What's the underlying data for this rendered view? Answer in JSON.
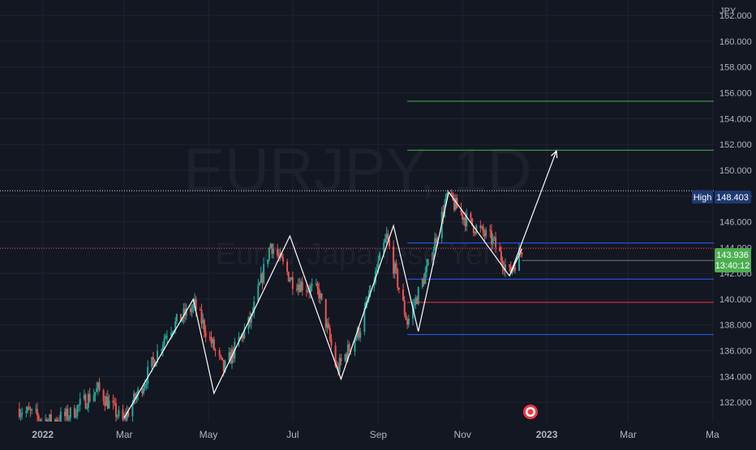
{
  "chart_data": {
    "type": "candlestick",
    "symbol": "EURJPY, 1D",
    "description": "Euro / Japanese Yen",
    "currency": "JPY",
    "y_range": [
      130.5,
      163.2
    ],
    "y_ticks": [
      "162.000",
      "160.000",
      "158.000",
      "156.000",
      "154.000",
      "152.000",
      "150.000",
      "148.000",
      "146.000",
      "144.000",
      "142.000",
      "140.000",
      "138.000",
      "136.000",
      "134.000",
      "132.000"
    ],
    "y_tick_values": [
      162,
      160,
      158,
      156,
      154,
      152,
      150,
      148,
      146,
      144,
      142,
      140,
      138,
      136,
      134,
      132
    ],
    "x_ticks": [
      {
        "label": "2022",
        "date": "2022-01-01",
        "bold": true
      },
      {
        "label": "Mar",
        "date": "2022-03-01",
        "bold": false
      },
      {
        "label": "May",
        "date": "2022-05-01",
        "bold": false
      },
      {
        "label": "Jul",
        "date": "2022-07-01",
        "bold": false
      },
      {
        "label": "Sep",
        "date": "2022-09-01",
        "bold": false
      },
      {
        "label": "Nov",
        "date": "2022-11-01",
        "bold": false
      },
      {
        "label": "2023",
        "date": "2023-01-01",
        "bold": true
      },
      {
        "label": "Mar",
        "date": "2023-03-01",
        "bold": false
      },
      {
        "label": "Ma",
        "date": "2023-05-01",
        "bold": false
      }
    ],
    "high_label": {
      "text": "High",
      "value": "148.403",
      "price": 148.403
    },
    "last_price": {
      "value": "143.936",
      "price": 143.936,
      "countdown": "13:40:12"
    },
    "key_points": [
      {
        "date": "2021-12-15",
        "price": 131.5
      },
      {
        "date": "2022-01-05",
        "price": 130.5
      },
      {
        "date": "2022-01-20",
        "price": 131.0
      },
      {
        "date": "2022-02-10",
        "price": 133.0
      },
      {
        "date": "2022-02-28",
        "price": 130.5
      },
      {
        "date": "2022-03-15",
        "price": 133.5
      },
      {
        "date": "2022-04-01",
        "price": 137.5
      },
      {
        "date": "2022-04-21",
        "price": 139.5
      },
      {
        "date": "2022-05-12",
        "price": 134.5
      },
      {
        "date": "2022-06-01",
        "price": 138.5
      },
      {
        "date": "2022-06-15",
        "price": 144.3
      },
      {
        "date": "2022-06-30",
        "price": 141.5
      },
      {
        "date": "2022-07-20",
        "price": 140.5
      },
      {
        "date": "2022-08-02",
        "price": 134.5
      },
      {
        "date": "2022-08-18",
        "price": 137.5
      },
      {
        "date": "2022-09-07",
        "price": 144.8
      },
      {
        "date": "2022-09-22",
        "price": 138.2
      },
      {
        "date": "2022-10-07",
        "price": 142.5
      },
      {
        "date": "2022-10-21",
        "price": 148.0
      },
      {
        "date": "2022-11-05",
        "price": 146.0
      },
      {
        "date": "2022-11-23",
        "price": 144.5
      },
      {
        "date": "2022-12-05",
        "price": 142.0
      },
      {
        "date": "2022-12-14",
        "price": 143.9
      }
    ],
    "horizontal_lines": [
      {
        "price": 155.35,
        "start": "2022-09-22",
        "color": "#4caf50"
      },
      {
        "price": 151.55,
        "start": "2022-09-22",
        "color": "#4caf50"
      },
      {
        "price": 144.35,
        "start": "2022-09-22",
        "color": "#2962ff"
      },
      {
        "price": 141.55,
        "start": "2022-09-22",
        "color": "#2962ff"
      },
      {
        "price": 139.75,
        "start": "2022-09-22",
        "color": "#f23645"
      },
      {
        "price": 137.25,
        "start": "2022-09-22",
        "color": "#2962ff"
      },
      {
        "price": 143.0,
        "start": "2022-12-14",
        "color": "#787b86"
      }
    ],
    "zigzag": [
      {
        "date": "2022-03-01",
        "price": 130.8
      },
      {
        "date": "2022-04-20",
        "price": 140.0
      },
      {
        "date": "2022-05-05",
        "price": 132.7
      },
      {
        "date": "2022-06-29",
        "price": 144.9
      },
      {
        "date": "2022-08-05",
        "price": 133.8
      },
      {
        "date": "2022-09-12",
        "price": 145.7
      },
      {
        "date": "2022-09-30",
        "price": 137.5
      },
      {
        "date": "2022-10-22",
        "price": 148.3
      },
      {
        "date": "2022-12-05",
        "price": 141.8
      },
      {
        "date": "2022-12-14",
        "price": 143.9
      }
    ],
    "projection_arrow": {
      "from": {
        "date": "2022-12-05",
        "price": 141.8
      },
      "to": {
        "date": "2023-01-08",
        "price": 151.5
      }
    },
    "colors": {
      "up": "#26a69a",
      "down": "#ef5350",
      "background": "#131722",
      "text": "#b2b5be",
      "grid": "#1f2330",
      "high_badge": "#1e3a72",
      "price_badge": "#4caf50",
      "last_line": "#f23645",
      "crosshair": "#d1d4dc"
    }
  },
  "event_marker": {
    "date": "2022-12-08",
    "icon": "flag-icon"
  }
}
